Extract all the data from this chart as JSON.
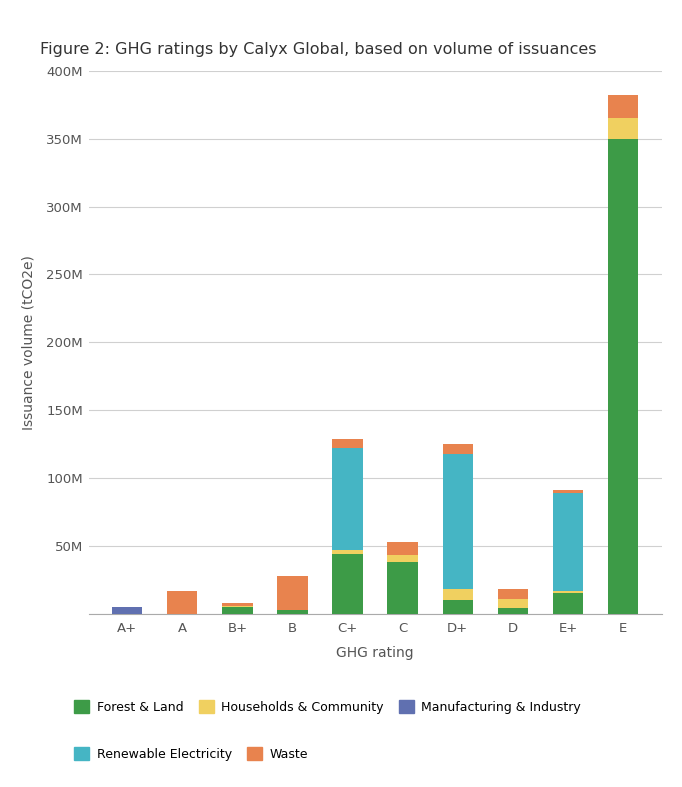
{
  "title": "Figure 2: GHG ratings by Calyx Global, based on volume of issuances",
  "categories": [
    "A+",
    "A",
    "B+",
    "B",
    "C+",
    "C",
    "D+",
    "D",
    "E+",
    "E"
  ],
  "xlabel": "GHG rating",
  "ylabel": "Issuance volume (tCO2e)",
  "ylim": [
    0,
    400000000
  ],
  "yticks": [
    0,
    50000000,
    100000000,
    150000000,
    200000000,
    250000000,
    300000000,
    350000000,
    400000000
  ],
  "ytick_labels": [
    "",
    "50M",
    "100M",
    "150M",
    "200M",
    "250M",
    "300M",
    "350M",
    "400M"
  ],
  "series": {
    "Forest & Land": {
      "color": "#3d9b47",
      "values": [
        0,
        0,
        5000000,
        3000000,
        44000000,
        38000000,
        10000000,
        4000000,
        15000000,
        350000000
      ]
    },
    "Households & Community": {
      "color": "#f0d060",
      "values": [
        0,
        0,
        1000000,
        0,
        3000000,
        5000000,
        8000000,
        7000000,
        2000000,
        15000000
      ]
    },
    "Manufacturing & Industry": {
      "color": "#6070b0",
      "values": [
        5000000,
        0,
        0,
        0,
        0,
        0,
        0,
        0,
        0,
        0
      ]
    },
    "Renewable Electricity": {
      "color": "#45b5c4",
      "values": [
        0,
        0,
        0,
        0,
        75000000,
        0,
        100000000,
        0,
        72000000,
        0
      ]
    },
    "Waste": {
      "color": "#e8834e",
      "values": [
        0,
        17000000,
        2000000,
        25000000,
        7000000,
        10000000,
        7000000,
        7000000,
        2000000,
        17000000
      ]
    }
  },
  "legend_order": [
    "Forest & Land",
    "Households & Community",
    "Manufacturing & Industry",
    "Renewable Electricity",
    "Waste"
  ],
  "background_color": "#ffffff",
  "grid_color": "#d0d0d0",
  "title_fontsize": 11.5,
  "axis_fontsize": 10,
  "tick_fontsize": 9.5
}
